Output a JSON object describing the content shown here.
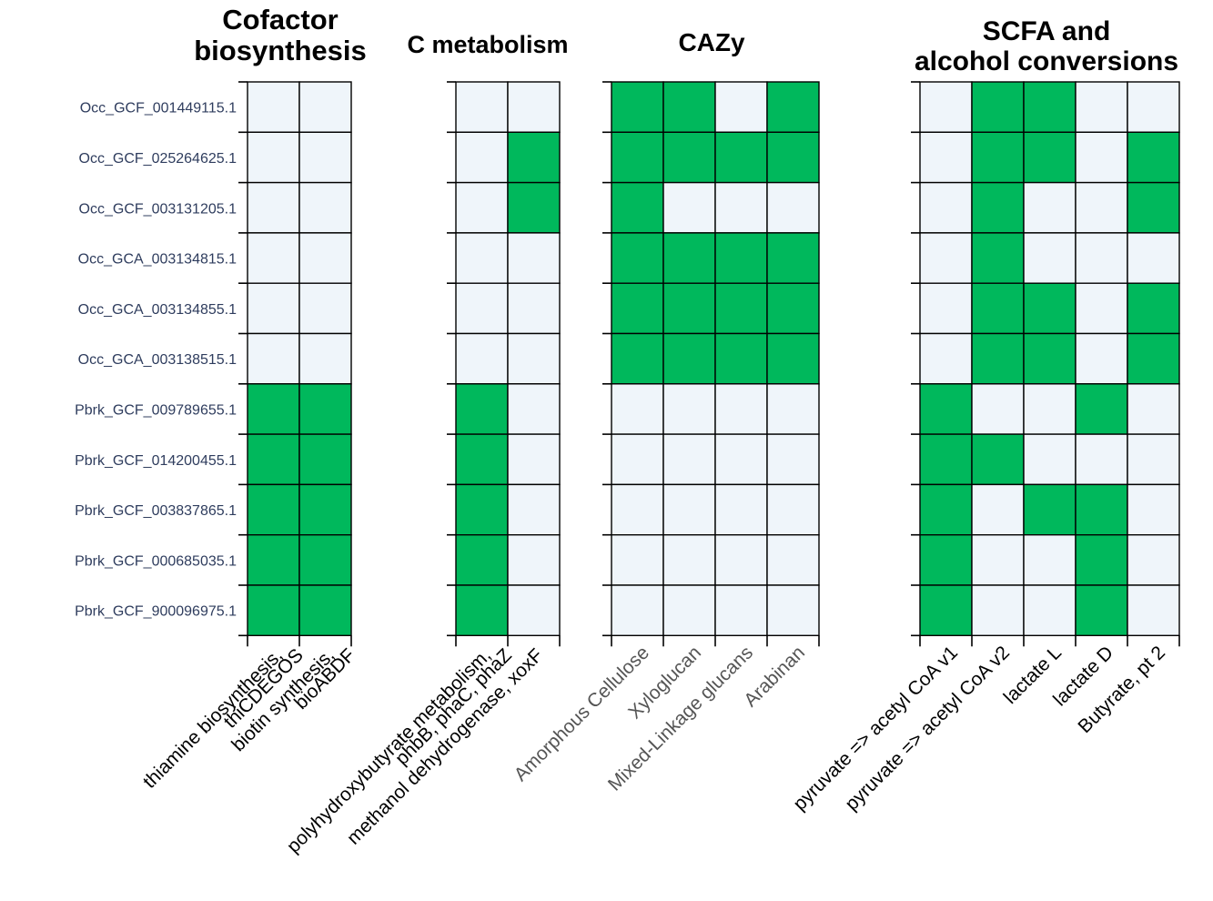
{
  "colors": {
    "present": "#00b85c",
    "absent": "#eff5fa",
    "grid": "#000000",
    "row_label": "#2f3d5e"
  },
  "chart_data": {
    "type": "heatmap",
    "rows": [
      "Occ_GCF_001449115.1",
      "Occ_GCF_025264625.1",
      "Occ_GCF_003131205.1",
      "Occ_GCA_003134815.1",
      "Occ_GCA_003134855.1",
      "Occ_GCA_003138515.1",
      "Pbrk_GCF_009789655.1",
      "Pbrk_GCF_014200455.1",
      "Pbrk_GCF_003837865.1",
      "Pbrk_GCF_000685035.1",
      "Pbrk_GCF_900096975.1"
    ],
    "panels": [
      {
        "title": [
          "Cofactor",
          "biosynthesis"
        ],
        "columns": [
          [
            "thiamine biosynthesis,",
            "thiCDEGOS"
          ],
          [
            "biotin synthesis,",
            "bioABDF"
          ]
        ],
        "values": [
          [
            0,
            0
          ],
          [
            0,
            0
          ],
          [
            0,
            0
          ],
          [
            0,
            0
          ],
          [
            0,
            0
          ],
          [
            0,
            0
          ],
          [
            1,
            1
          ],
          [
            1,
            1
          ],
          [
            1,
            1
          ],
          [
            1,
            1
          ],
          [
            1,
            1
          ]
        ]
      },
      {
        "title": [
          "C metabolism"
        ],
        "columns": [
          [
            "polyhydroxybutyrate metabolism,",
            "phbB, phaC, phaZ"
          ],
          [
            "methanol dehydrogenase, xoxF"
          ]
        ],
        "values": [
          [
            0,
            0
          ],
          [
            0,
            1
          ],
          [
            0,
            1
          ],
          [
            0,
            0
          ],
          [
            0,
            0
          ],
          [
            0,
            0
          ],
          [
            1,
            0
          ],
          [
            1,
            0
          ],
          [
            1,
            0
          ],
          [
            1,
            0
          ],
          [
            1,
            0
          ]
        ]
      },
      {
        "title": [
          "CAZy"
        ],
        "columns": [
          [
            "Amorphous Cellulose"
          ],
          [
            "Xyloglucan"
          ],
          [
            "Mixed-Linkage glucans"
          ],
          [
            "Arabinan"
          ]
        ],
        "values": [
          [
            1,
            1,
            0,
            1
          ],
          [
            1,
            1,
            1,
            1
          ],
          [
            1,
            0,
            0,
            0
          ],
          [
            1,
            1,
            1,
            1
          ],
          [
            1,
            1,
            1,
            1
          ],
          [
            1,
            1,
            1,
            1
          ],
          [
            0,
            0,
            0,
            0
          ],
          [
            0,
            0,
            0,
            0
          ],
          [
            0,
            0,
            0,
            0
          ],
          [
            0,
            0,
            0,
            0
          ],
          [
            0,
            0,
            0,
            0
          ]
        ]
      },
      {
        "title": [
          "SCFA and",
          "alcohol conversions"
        ],
        "columns": [
          [
            "pyruvate => acetyl CoA v1"
          ],
          [
            "pyruvate => acetyl CoA v2"
          ],
          [
            "lactate L"
          ],
          [
            "lactate D"
          ],
          [
            "Butyrate, pt 2"
          ]
        ],
        "values": [
          [
            0,
            1,
            1,
            0,
            0
          ],
          [
            0,
            1,
            1,
            0,
            1
          ],
          [
            0,
            1,
            0,
            0,
            1
          ],
          [
            0,
            1,
            0,
            0,
            0
          ],
          [
            0,
            1,
            1,
            0,
            1
          ],
          [
            0,
            1,
            1,
            0,
            1
          ],
          [
            1,
            0,
            0,
            1,
            0
          ],
          [
            1,
            1,
            0,
            0,
            0
          ],
          [
            1,
            0,
            1,
            1,
            0
          ],
          [
            1,
            0,
            0,
            1,
            0
          ],
          [
            1,
            0,
            0,
            1,
            0
          ]
        ]
      }
    ]
  }
}
